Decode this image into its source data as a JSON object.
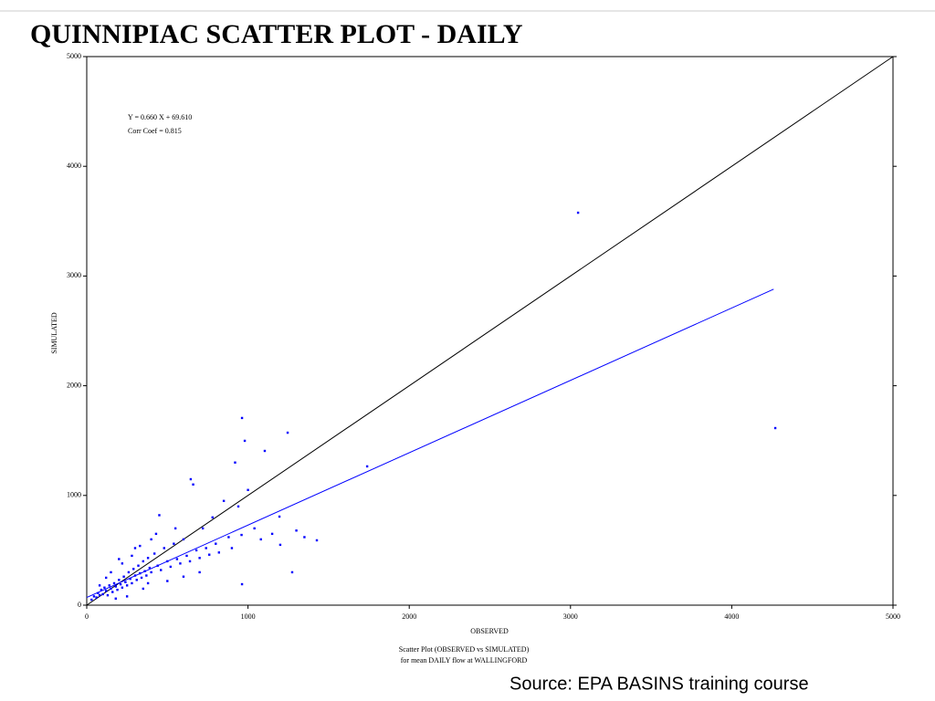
{
  "chart_data": {
    "type": "scatter",
    "title": "QUINNIPIAC SCATTER PLOT - DAILY",
    "xlabel": "OBSERVED",
    "ylabel": "SIMULATED",
    "caption": [
      "Scatter Plot (OBSERVED vs SIMULATED)",
      "for mean DAILY flow at WALLINGFORD"
    ],
    "annotations": [
      "Y =   0.660 X +   69.610",
      "Corr Coef =   0.815"
    ],
    "source": "Source:  EPA BASINS training course",
    "xlim": [
      0,
      5000
    ],
    "ylim": [
      0,
      5000
    ],
    "xticks": [
      0,
      1000,
      2000,
      3000,
      4000,
      5000
    ],
    "yticks": [
      0,
      1000,
      2000,
      3000,
      4000,
      5000
    ],
    "color": "#0000ff",
    "x": [
      30,
      45,
      60,
      70,
      80,
      90,
      100,
      110,
      120,
      130,
      140,
      150,
      160,
      170,
      180,
      190,
      200,
      210,
      220,
      230,
      240,
      250,
      260,
      270,
      280,
      290,
      300,
      310,
      320,
      330,
      340,
      350,
      360,
      370,
      380,
      390,
      400,
      420,
      440,
      460,
      480,
      500,
      520,
      540,
      560,
      580,
      600,
      620,
      640,
      660,
      680,
      700,
      720,
      740,
      760,
      780,
      800,
      820,
      850,
      880,
      900,
      920,
      940,
      960,
      1000,
      1040,
      1080,
      1150,
      1200,
      1300,
      1350,
      150,
      200,
      250,
      300,
      350,
      400,
      450,
      180,
      120,
      80,
      220,
      280,
      330,
      380,
      430,
      500,
      550,
      600,
      700,
      3047,
      4270,
      1739,
      963,
      1246,
      980,
      1104,
      645,
      1195,
      963,
      1274,
      1427
    ],
    "values": [
      50,
      80,
      70,
      110,
      90,
      140,
      100,
      160,
      130,
      90,
      180,
      150,
      120,
      200,
      170,
      140,
      230,
      190,
      160,
      260,
      210,
      180,
      300,
      240,
      200,
      330,
      270,
      230,
      360,
      290,
      250,
      400,
      310,
      270,
      430,
      340,
      300,
      470,
      360,
      320,
      520,
      400,
      350,
      560,
      420,
      380,
      600,
      450,
      400,
      1100,
      500,
      430,
      700,
      520,
      460,
      800,
      560,
      480,
      950,
      620,
      520,
      1300,
      900,
      640,
      1050,
      700,
      600,
      650,
      550,
      680,
      620,
      300,
      420,
      80,
      520,
      150,
      600,
      820,
      60,
      250,
      180,
      380,
      450,
      540,
      200,
      650,
      220,
      700,
      260,
      300,
      3577,
      1614,
      1265,
      1706,
      1572,
      1498,
      1406,
      1148,
      807,
      191,
      300,
      591
    ],
    "lines": [
      {
        "color": "#000000",
        "x": [
          0,
          5000
        ],
        "values": [
          0,
          5000
        ]
      },
      {
        "color": "#0000ff",
        "x": [
          0,
          4260
        ],
        "values": [
          70,
          2880
        ]
      }
    ]
  }
}
